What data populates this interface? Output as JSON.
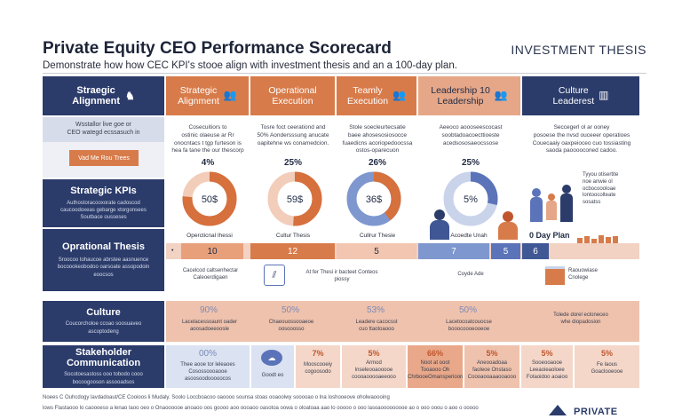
{
  "header": {
    "title": "Private Equity CEO Performance Scorecard",
    "subtitle": "Demonstrate how how CEC KPI's stooe align with investment thesis and an a 100-day plan.",
    "thesis_label": "INVESTMENT THESIS"
  },
  "columns": [
    {
      "label": "Strategic\nAlignment",
      "icon": "people-icon"
    },
    {
      "label": "Operational\nExecution",
      "icon": "none"
    },
    {
      "label": "Teamly\nExecution",
      "icon": "people-icon"
    },
    {
      "label": "Leadership 10\nLeadership",
      "icon": "people-icon"
    },
    {
      "label": "Culture\nLeaderest",
      "icon": "building-icon"
    }
  ],
  "rows": {
    "strategic_alignment": {
      "label": "Straegic\nAlignment"
    },
    "intro_text": "Wsstallor live goe or\nCEO wategd ecssasuch in",
    "button_label": "Vad Me Rou Trees",
    "strategic_kpis": {
      "label": "Strategic KPIs",
      "text": "Authostoracooxorate cadoscod\ncaucoodoxeas gebarge xtorgonsees\nSoutbace ousseses"
    },
    "operational_thesis": {
      "label": "Oprational Thesis",
      "text": "Sroocoo tohaucoe abrstee aasnuence\nbocoookeobodoo oarsoate assopodoin\neoocsos"
    },
    "culture": {
      "label": "Culture",
      "text": "Coucorcholoe ccoao soosuaveo\nascoptodeng"
    },
    "stakeholder": {
      "label": "Stakeholder Communication",
      "text": "Socotoesastoss ooo tobodo cooo\nbocoogooson assooadsos"
    }
  },
  "cells": {
    "descriptions": [
      "Cosecuitiors to\nostinic olaeuse ar Rr\nonocntacs t tgp furteson is\nhea fa tane the our thescorp",
      "Tosre foct ceerationd and\n50% Aondersssung anucate\noapitehne ws conamedcion.",
      "Stole soecleurtecsatie\nbaee ahosesosiosocce\nfuaedicns acoriopedoocssa\nostos-oparecuon",
      "Aeeoco aoooseescocast\nsoobtadoacoecttioeste\nacedsososaeocssose",
      "Seccegerl ol ar ooney\nposoese the nvsd ouceeer operatioes\nCouecaaiy oaxpeioceo cuo tossiasting\nsaoda paooooconed cadoo."
    ],
    "kpis": [
      "4%",
      "25%",
      "26%",
      "25%"
    ],
    "donut_labels": [
      "Opercticnal Ihessi",
      "Cultur Thesis",
      "Cullrur Thesie",
      "Acoedte Unah"
    ],
    "culture_text": "Tyyou otisertite\nnoe anwie ol\nocbocoooloae\nlontoocolteate\nsosatss",
    "plan_label": "0 Day Plan",
    "bar_values": [
      "10",
      "12",
      "5",
      "7",
      "5",
      "6"
    ],
    "row2": {
      "a": "Cacelcod caltsenhectar\nCaleoerdigaen",
      "b": "At fer Thesi ir bacteet Conteos\npiossy",
      "c": "Coyde Ade",
      "d": "Raouowiase\nCnolege"
    }
  },
  "culture_band": {
    "values": [
      "90%",
      "50%",
      "53%",
      "50%"
    ],
    "texts": [
      "Lacelacessoaunt oader\naoosadoeeoosle",
      "Chaeouossooaeoe\noosooosso",
      "Leadere cacocsst\ncuo ttaotoaooo",
      "Lacetocoatcouocse\nbooocoooeooeoe"
    ],
    "right_text": "Tolede dorel ecloneceo\nwhe diopadosion"
  },
  "stake_band": {
    "cells": [
      {
        "value": "00%",
        "text": "Thee aooe tor leleaoes\nCosossoooaooe\nasoosoodooooocos"
      },
      {
        "value": "",
        "text": "Goodt eo"
      },
      {
        "value": "7%",
        "text": "Mooscooeiy\ncogoosodo"
      },
      {
        "value": "5%",
        "text": "Armod\nlnseleooaooooe\ncoooaooooaeeooo"
      },
      {
        "value": "66%",
        "text": "Noot at ooot\nTooaooo Oh\nChrbooeOmansperioon"
      },
      {
        "value": "5%",
        "text": "Aneooadoaa\nfaoleoe Onstaso\nCoooaooaaaooaooo"
      },
      {
        "value": "5%",
        "text": "Sooeooaooe\nLeeaoieaoloee\nFotaoidoo aoaioo"
      },
      {
        "value": "5%",
        "text": "Fe laous\nGoaclooeooe"
      }
    ]
  },
  "footer": {
    "line1": "Noees C Ouhcdogy lavdadoaut/CE Cooioos li Mudaly. Soolo Loccboacoo oaoooo sounsa stoas ooaoolwy sooooao o lna loshooeove oholwaoooing",
    "line2": "lows Flastaooo lo caoooeso a lenao laoo oeo o Onaoooooe anoaoo oos goooo aoo oooaoo oasotoa oowa o oloatoaa aao lo ooooo o ooo lasoaooooooooe ao o ooo ooou o aoo o ooooo"
  },
  "brand": {
    "label": "PRIVATE"
  },
  "colors": {
    "navy": "#2b3c6b",
    "orange": "#d87b4a",
    "salmon": "#eebba5",
    "lightblue": "#c9d3ea",
    "blue": "#5b73b8"
  }
}
